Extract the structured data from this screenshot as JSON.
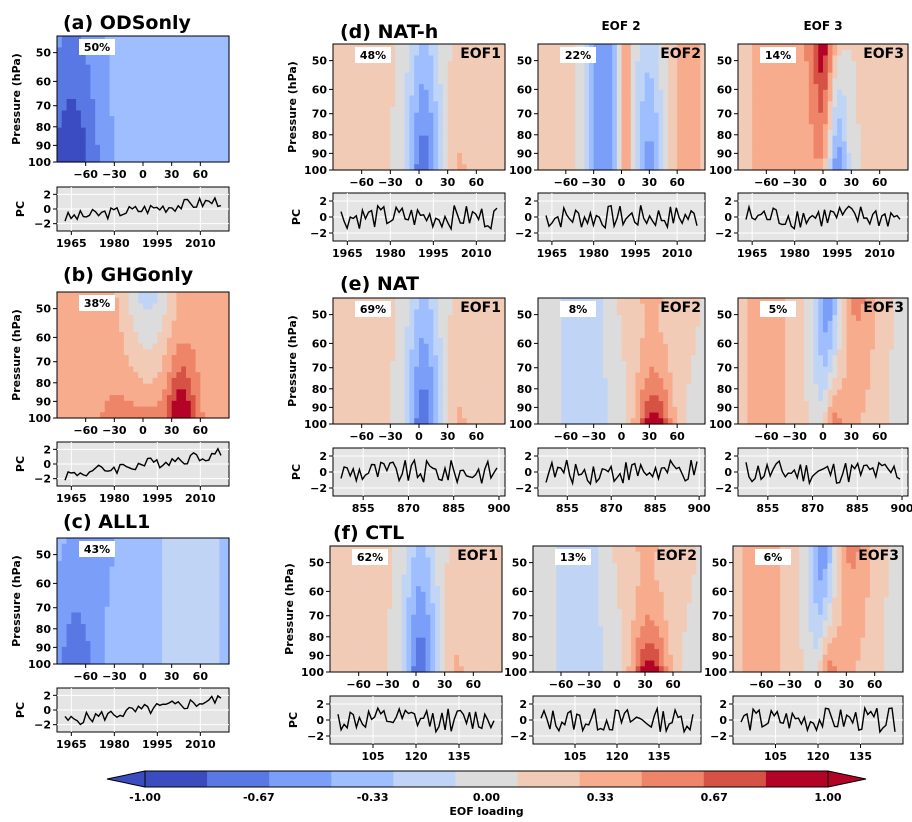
{
  "column_headers": [
    "EOF 2",
    "EOF 3"
  ],
  "colorbar": {
    "ticks": [
      "-1.00",
      "-0.67",
      "-0.33",
      "0.00",
      "0.33",
      "0.67",
      "1.00"
    ],
    "label": "EOF loading",
    "colors": [
      "#3b4cc0",
      "#5a78e4",
      "#7b9ff9",
      "#9ebeff",
      "#c0d4f5",
      "#dddcdc",
      "#f2cbb7",
      "#f7ac8e",
      "#ee8468",
      "#d65244",
      "#b40426"
    ]
  },
  "axes": {
    "pressure_label": "Pressure (hPa)",
    "pc_label": "PC",
    "pressure_ticks": [
      "50",
      "60",
      "70",
      "80",
      "90",
      "100"
    ],
    "lat_ticks": [
      "−60",
      "−30",
      "0",
      "30",
      "60"
    ],
    "pc_ticks": [
      "2",
      "0",
      "−2"
    ],
    "years_obs": [
      "1965",
      "1980",
      "1995",
      "2010"
    ],
    "years_nat": [
      "855",
      "870",
      "885",
      "900"
    ],
    "years_ctl": [
      "105",
      "120",
      "135"
    ]
  },
  "chart_data": [
    {
      "type": "heatmap",
      "panel_title": "(a) ODSonly",
      "eof_label": "",
      "variance": "50%",
      "pattern": "ods",
      "pc_axis": "obs",
      "x_range": [
        -90,
        90
      ],
      "y_range": [
        100,
        45
      ]
    },
    {
      "type": "heatmap",
      "panel_title": "(b) GHGonly",
      "eof_label": "",
      "variance": "38%",
      "pattern": "ghg",
      "pc_axis": "obs",
      "x_range": [
        -90,
        90
      ],
      "y_range": [
        100,
        45
      ]
    },
    {
      "type": "heatmap",
      "panel_title": "(c) ALL1",
      "eof_label": "",
      "variance": "43%",
      "pattern": "all1",
      "pc_axis": "obs",
      "x_range": [
        -90,
        90
      ],
      "y_range": [
        100,
        45
      ]
    },
    {
      "type": "heatmap",
      "panel_title": "(d) NAT-h",
      "eof_label": "EOF1",
      "variance": "48%",
      "pattern": "e1",
      "pc_axis": "obs",
      "x_range": [
        -90,
        90
      ],
      "y_range": [
        100,
        45
      ]
    },
    {
      "type": "heatmap",
      "panel_title": "",
      "eof_label": "EOF2",
      "variance": "22%",
      "pattern": "nh2",
      "pc_axis": "obs",
      "x_range": [
        -90,
        90
      ],
      "y_range": [
        100,
        45
      ]
    },
    {
      "type": "heatmap",
      "panel_title": "",
      "eof_label": "EOF3",
      "variance": "14%",
      "pattern": "nh3",
      "pc_axis": "obs",
      "x_range": [
        -90,
        90
      ],
      "y_range": [
        100,
        45
      ]
    },
    {
      "type": "heatmap",
      "panel_title": "(e) NAT",
      "eof_label": "EOF1",
      "variance": "69%",
      "pattern": "e1",
      "pc_axis": "nat",
      "x_range": [
        -90,
        90
      ],
      "y_range": [
        100,
        45
      ]
    },
    {
      "type": "heatmap",
      "panel_title": "",
      "eof_label": "EOF2",
      "variance": "8%",
      "pattern": "e2",
      "pc_axis": "nat",
      "x_range": [
        -90,
        90
      ],
      "y_range": [
        100,
        45
      ]
    },
    {
      "type": "heatmap",
      "panel_title": "",
      "eof_label": "EOF3",
      "variance": "5%",
      "pattern": "e3",
      "pc_axis": "nat",
      "x_range": [
        -90,
        90
      ],
      "y_range": [
        100,
        45
      ]
    },
    {
      "type": "heatmap",
      "panel_title": "(f) CTL",
      "eof_label": "EOF1",
      "variance": "62%",
      "pattern": "e1",
      "pc_axis": "ctl",
      "x_range": [
        -90,
        90
      ],
      "y_range": [
        100,
        45
      ]
    },
    {
      "type": "heatmap",
      "panel_title": "",
      "eof_label": "EOF2",
      "variance": "13%",
      "pattern": "e2",
      "pc_axis": "ctl",
      "x_range": [
        -90,
        90
      ],
      "y_range": [
        100,
        45
      ]
    },
    {
      "type": "heatmap",
      "panel_title": "",
      "eof_label": "EOF3",
      "variance": "6%",
      "pattern": "e3",
      "pc_axis": "ctl",
      "x_range": [
        -90,
        90
      ],
      "y_range": [
        100,
        45
      ]
    }
  ]
}
